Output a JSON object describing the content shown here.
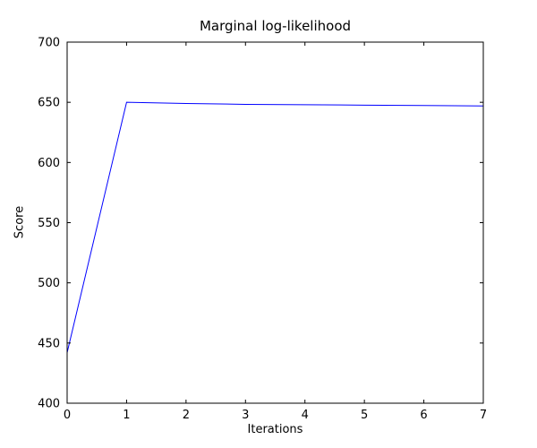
{
  "chart_data": {
    "type": "line",
    "title": "Marginal log-likelihood",
    "xlabel": "Iterations",
    "ylabel": "Score",
    "xlim": [
      0,
      7
    ],
    "ylim": [
      400,
      700
    ],
    "xticks": [
      0,
      1,
      2,
      3,
      4,
      5,
      6,
      7
    ],
    "yticks": [
      400,
      450,
      500,
      550,
      600,
      650,
      700
    ],
    "grid": false,
    "legend": "none",
    "series": [
      {
        "name": "marginal-log-likelihood",
        "color": "#0000ff",
        "x": [
          0,
          1,
          2,
          3,
          4,
          5,
          6,
          7
        ],
        "y": [
          442,
          650,
          649,
          648.3,
          648,
          647.6,
          647.3,
          647
        ]
      }
    ]
  }
}
